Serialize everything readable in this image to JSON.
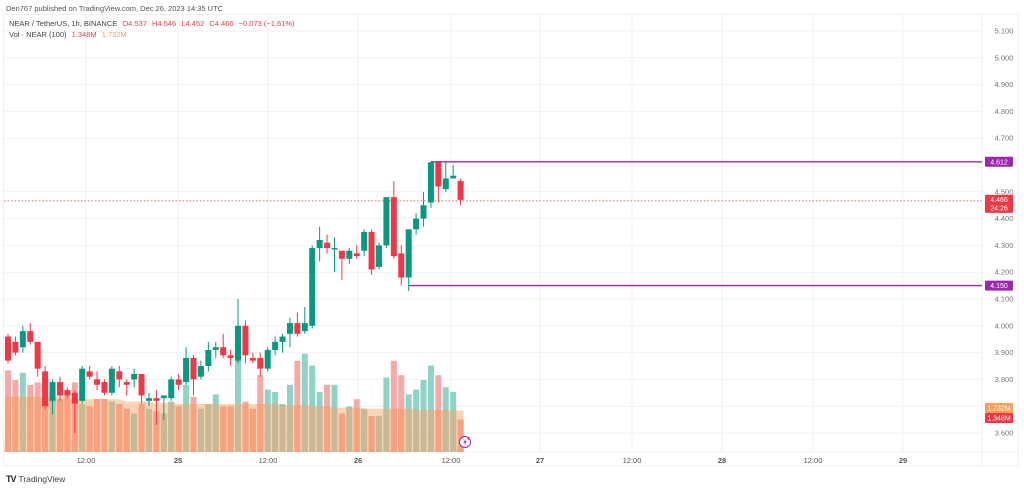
{
  "header": {
    "published": "Den767 published on TradingView.com, Dec 26, 2023 14:35 UTC",
    "symbol": "NEAR / TetherUS, 1h, BINANCE",
    "open": "O4.537",
    "high": "H4.546",
    "low": "L4.452",
    "close": "C4.466",
    "change": "−0.073 (−1.61%)",
    "vol_label": "Vol · NEAR (100)",
    "vol_value": "1.348M",
    "vol_ma": "1.732M"
  },
  "footer": {
    "logo_icon": "tradingview-logo-icon",
    "brand": "TradingView"
  },
  "colors": {
    "up": "#089981",
    "down": "#f23645",
    "level_line": "#9c27b0",
    "price_line": "#f23645",
    "vol_ma": "#f6a05a"
  },
  "price_axis": {
    "labels": [
      "5.100",
      "5.000",
      "4.900",
      "4.800",
      "4.700",
      "4.500",
      "4.400",
      "4.300",
      "4.200",
      "4.100",
      "4.000",
      "3.900",
      "3.800",
      "3.600"
    ],
    "badges": [
      {
        "text": "4.612",
        "color": "#9c27b0"
      },
      {
        "text": "4.466",
        "sub": "24:26",
        "color": "#f23645"
      },
      {
        "text": "4.150",
        "color": "#9c27b0"
      },
      {
        "text": "1.732M",
        "color": "#f6a05a"
      },
      {
        "text": "1.348M",
        "color": "#f23645"
      }
    ]
  },
  "time_axis": {
    "labels": [
      "12:00",
      "25",
      "12:00",
      "26",
      "12:00",
      "27",
      "12:00",
      "28",
      "12:00",
      "29"
    ]
  },
  "chart_data": {
    "type": "candlestick",
    "title": "NEAR / TetherUS, 1h, BINANCE",
    "xlabel": "",
    "ylabel": "Price (USDT)",
    "ylim": [
      3.55,
      5.15
    ],
    "grid": true,
    "levels": [
      {
        "name": "resistance",
        "value": 4.612
      },
      {
        "name": "support",
        "value": 4.15
      }
    ],
    "last_price": 4.466,
    "countdown": "24:26",
    "volume": {
      "last": "1.348M",
      "ma100": "1.732M"
    },
    "x_ticks": [
      "12:00",
      "25",
      "12:00",
      "26",
      "12:00",
      "27",
      "12:00",
      "28",
      "12:00",
      "29"
    ],
    "candles": [
      [
        3.96,
        3.97,
        3.86,
        3.87
      ],
      [
        3.94,
        3.96,
        3.89,
        3.9
      ],
      [
        3.92,
        4.0,
        3.9,
        3.98
      ],
      [
        3.98,
        4.01,
        3.93,
        3.94
      ],
      [
        3.94,
        3.94,
        3.81,
        3.84
      ],
      [
        3.83,
        3.85,
        3.69,
        3.7
      ],
      [
        3.72,
        3.8,
        3.67,
        3.79
      ],
      [
        3.79,
        3.81,
        3.72,
        3.74
      ],
      [
        3.76,
        3.77,
        3.73,
        3.74
      ],
      [
        3.75,
        3.76,
        3.6,
        3.71
      ],
      [
        3.72,
        3.85,
        3.71,
        3.84
      ],
      [
        3.83,
        3.85,
        3.8,
        3.81
      ],
      [
        3.8,
        3.83,
        3.76,
        3.78
      ],
      [
        3.79,
        3.8,
        3.74,
        3.75
      ],
      [
        3.75,
        3.85,
        3.74,
        3.84
      ],
      [
        3.83,
        3.85,
        3.77,
        3.8
      ],
      [
        3.79,
        3.8,
        3.74,
        3.78
      ],
      [
        3.8,
        3.84,
        3.77,
        3.82
      ],
      [
        3.82,
        3.82,
        3.71,
        3.74
      ],
      [
        3.72,
        3.75,
        3.7,
        3.73
      ],
      [
        3.73,
        3.76,
        3.63,
        3.72
      ],
      [
        3.73,
        3.74,
        3.65,
        3.74
      ],
      [
        3.73,
        3.81,
        3.72,
        3.8
      ],
      [
        3.8,
        3.82,
        3.76,
        3.78
      ],
      [
        3.79,
        3.92,
        3.78,
        3.88
      ],
      [
        3.88,
        3.89,
        3.74,
        3.8
      ],
      [
        3.81,
        3.87,
        3.8,
        3.85
      ],
      [
        3.85,
        3.94,
        3.83,
        3.91
      ],
      [
        3.91,
        3.94,
        3.88,
        3.92
      ],
      [
        3.92,
        3.97,
        3.88,
        3.89
      ],
      [
        3.89,
        3.91,
        3.85,
        3.88
      ],
      [
        3.87,
        4.1,
        3.86,
        4.0
      ],
      [
        4.0,
        4.02,
        3.86,
        3.89
      ],
      [
        3.88,
        3.9,
        3.86,
        3.87
      ],
      [
        3.88,
        3.9,
        3.81,
        3.84
      ],
      [
        3.84,
        3.92,
        3.83,
        3.91
      ],
      [
        3.91,
        3.96,
        3.89,
        3.94
      ],
      [
        3.94,
        3.97,
        3.9,
        3.96
      ],
      [
        3.97,
        4.03,
        3.92,
        4.01
      ],
      [
        4.01,
        4.05,
        3.96,
        3.97
      ],
      [
        3.98,
        4.07,
        3.97,
        4.01
      ],
      [
        4.0,
        4.3,
        3.99,
        4.29
      ],
      [
        4.29,
        4.37,
        4.24,
        4.32
      ],
      [
        4.31,
        4.34,
        4.27,
        4.29
      ],
      [
        4.29,
        4.33,
        4.2,
        4.29
      ],
      [
        4.28,
        4.28,
        4.17,
        4.25
      ],
      [
        4.25,
        4.29,
        4.23,
        4.28
      ],
      [
        4.27,
        4.3,
        4.25,
        4.26
      ],
      [
        4.28,
        4.36,
        4.26,
        4.35
      ],
      [
        4.35,
        4.36,
        4.19,
        4.21
      ],
      [
        4.22,
        4.31,
        4.21,
        4.3
      ],
      [
        4.3,
        4.48,
        4.29,
        4.48
      ],
      [
        4.48,
        4.54,
        4.25,
        4.26
      ],
      [
        4.27,
        4.3,
        4.15,
        4.18
      ],
      [
        4.18,
        4.36,
        4.13,
        4.36
      ],
      [
        4.36,
        4.42,
        4.34,
        4.4
      ],
      [
        4.4,
        4.5,
        4.37,
        4.45
      ],
      [
        4.46,
        4.61,
        4.44,
        4.61
      ],
      [
        4.61,
        4.61,
        4.46,
        4.52
      ],
      [
        4.51,
        4.61,
        4.5,
        4.55
      ],
      [
        4.55,
        4.6,
        4.55,
        4.56
      ],
      [
        4.54,
        4.55,
        4.45,
        4.47
      ]
    ],
    "candle_format": [
      "open",
      "high",
      "low",
      "close"
    ],
    "volumes": [
      3.4,
      3.0,
      3.3,
      2.8,
      2.9,
      3.1,
      2.6,
      2.2,
      2.5,
      2.9,
      2.0,
      1.9,
      2.2,
      2.2,
      2.1,
      2.0,
      1.8,
      1.6,
      2.0,
      1.8,
      1.7,
      1.6,
      2.1,
      1.9,
      2.8,
      2.3,
      1.8,
      2.0,
      2.4,
      1.9,
      1.9,
      4.4,
      2.1,
      1.8,
      3.2,
      2.6,
      2.5,
      2.0,
      2.8,
      3.8,
      4.1,
      3.6,
      2.5,
      2.8,
      2.8,
      1.6,
      1.9,
      2.2,
      1.8,
      1.5,
      1.5,
      3.1,
      3.8,
      3.2,
      2.4,
      2.6,
      3.0,
      3.6,
      3.2,
      2.7,
      2.5,
      1.35
    ],
    "volume_ma": [
      2.3,
      2.3,
      2.3,
      2.3,
      2.3,
      2.3,
      2.3,
      2.3,
      2.3,
      2.2,
      2.2,
      2.2,
      2.2,
      2.2,
      2.2,
      2.2,
      2.1,
      2.1,
      2.1,
      2.1,
      2.05,
      2.05,
      2.05,
      2.0,
      2.0,
      2.0,
      2.0,
      2.0,
      2.0,
      2.0,
      2.0,
      2.0,
      2.0,
      2.0,
      2.0,
      2.0,
      2.0,
      1.95,
      1.95,
      1.95,
      1.95,
      1.9,
      1.9,
      1.9,
      1.85,
      1.85,
      1.85,
      1.85,
      1.8,
      1.8,
      1.8,
      1.8,
      1.8,
      1.8,
      1.8,
      1.75,
      1.75,
      1.75,
      1.75,
      1.75,
      1.73,
      1.73
    ]
  }
}
